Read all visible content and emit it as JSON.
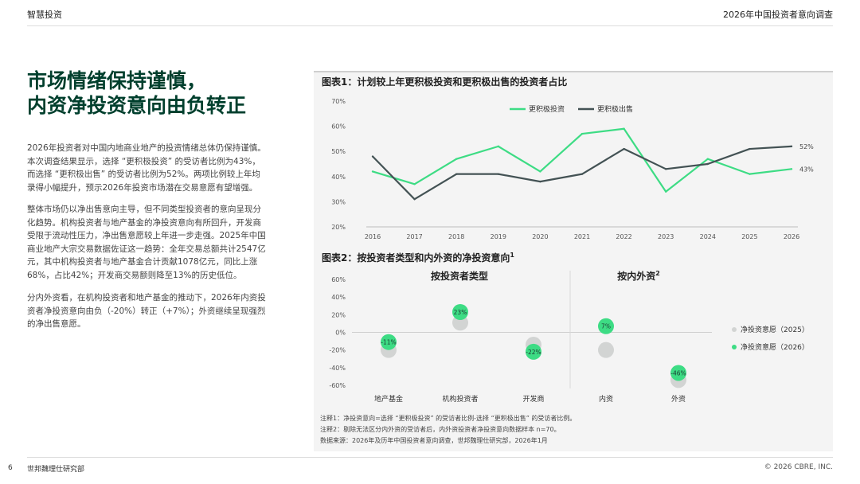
{
  "header": {
    "brand": "智慧投资",
    "report_title": "2026年中国投资者意向调查"
  },
  "headline": {
    "line1": "市场情绪保持谨慎，",
    "line2": "内资净投资意向由负转正"
  },
  "paragraphs": [
    [
      "2026年投资者对中国内地商业地产的投资情绪总体仍保持谨慎。",
      "本次调查结果显示，选择 “更积极投资” 的受访者比例为43%，",
      "而选择 “更积极出售” 的受访者比例为52%。两项比例较上年均",
      "录得小幅提升，预示2026年投资市场潜在交易意愿有望增强。"
    ],
    [
      "整体市场仍以净出售意向主导，但不同类型投资者的意向呈现分",
      "化趋势。机构投资者与地产基金的净投资意向有所回升，开发商",
      "受限于流动性压力，净出售意愿较上年进一步走强。2025年中国",
      "商业地产大宗交易数据佐证这一趋势：全年交易总额共计2547亿",
      "元，其中机构投资者与地产基金合计贡献1078亿元，同比上涨",
      "68%，占比42%；开发商交易额则降至13%的历史低位。"
    ],
    [
      "分内外资看，在机构投资者和地产基金的推动下，2026年内资投",
      "资者净投资意向由负（-20%）转正（+7%）；外资继续呈现强烈",
      "的净出售意愿。"
    ]
  ],
  "chart_data": [
    {
      "type": "line",
      "title": "图表1：计划较上年更积极投资和更积极出售的投资者占比",
      "x": [
        "2016",
        "2017",
        "2018",
        "2019",
        "2020",
        "2021",
        "2022",
        "2023",
        "2024",
        "2025",
        "2026"
      ],
      "ylim": [
        20,
        70
      ],
      "yticks": [
        "70%",
        "60%",
        "50%",
        "40%",
        "30%",
        "20%"
      ],
      "ytick_values": [
        70,
        60,
        50,
        40,
        30,
        20
      ],
      "series": [
        {
          "name": "更积极投资",
          "color": "#3ddc84",
          "values": [
            42,
            37,
            47,
            52,
            42,
            57,
            59,
            34,
            47,
            41,
            43
          ],
          "end_label": "43%"
        },
        {
          "name": "更积极出售",
          "color": "#435254",
          "values": [
            48,
            31,
            41,
            41,
            38,
            41,
            51,
            43,
            45,
            51,
            52
          ],
          "end_label": "52%"
        }
      ]
    },
    {
      "type": "scatter",
      "title": "图表2：按投资者类型和内外资的净投资意向",
      "title_sup": "1",
      "group_labels": [
        "按投资者类型",
        "按内外资"
      ],
      "group2_sup": "2",
      "categories": [
        "地产基金",
        "机构投资者",
        "开发商",
        "内资",
        "外资"
      ],
      "ylim": [
        -60,
        60
      ],
      "yticks": [
        "60%",
        "40%",
        "20%",
        "0%",
        "-20%",
        "-40%",
        "-60%"
      ],
      "ytick_values": [
        60,
        40,
        20,
        0,
        -20,
        -40,
        -60
      ],
      "series": [
        {
          "name": "净投资意愿（2025）",
          "color": "#d2d4d3",
          "values": [
            -20,
            11,
            -14,
            -20,
            -54
          ]
        },
        {
          "name": "净投资意愿（2026）",
          "color": "#3ddc84",
          "values": [
            -11,
            23,
            -22,
            7,
            -46
          ],
          "labels": [
            "-11%",
            "23%",
            "-22%",
            "7%",
            "-46%"
          ]
        }
      ]
    }
  ],
  "notes": [
    "注释1：净投资意向=选择 “更积极投资” 的受访者比例-选择 “更积极出售” 的受访者比例。",
    "注释2：剔除无法区分内外资的受访者后，内外资投资者净投资意向数据样本 n=70。",
    "数据来源：2026年及历年中国投资者意向调查，世邦魏理仕研究部，2026年1月"
  ],
  "footer": {
    "page": "6",
    "dept": "世邦魏理仕研究部",
    "copyright": "© 2026 CBRE, INC."
  }
}
